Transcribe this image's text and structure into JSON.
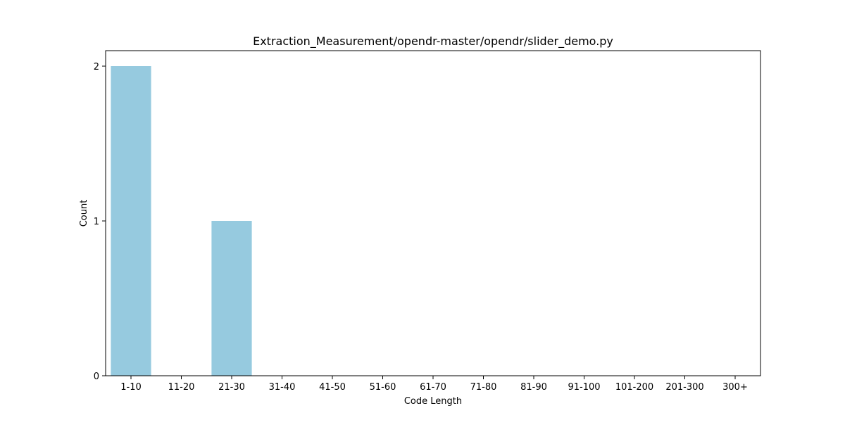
{
  "chart_data": {
    "type": "bar",
    "title": "Extraction_Measurement/opendr-master/opendr/slider_demo.py",
    "xlabel": "Code Length",
    "ylabel": "Count",
    "categories": [
      "1-10",
      "11-20",
      "21-30",
      "31-40",
      "41-50",
      "51-60",
      "61-70",
      "71-80",
      "81-90",
      "91-100",
      "101-200",
      "201-300",
      "300+"
    ],
    "values": [
      2,
      0,
      1,
      0,
      0,
      0,
      0,
      0,
      0,
      0,
      0,
      0,
      0
    ],
    "yticks": [
      0,
      1,
      2
    ],
    "ylim": [
      0,
      2.1
    ],
    "grid": false,
    "legend": "none",
    "bar_color": "#96CADF"
  }
}
